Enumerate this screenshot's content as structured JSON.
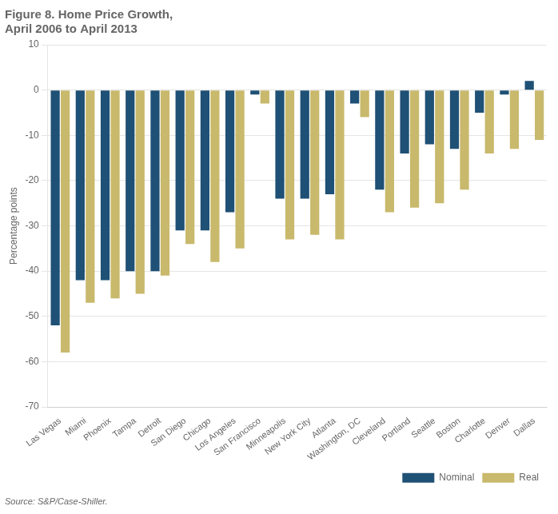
{
  "chart_data": {
    "type": "bar",
    "title": "Figure 8. Home Price Growth,",
    "subtitle": "April 2006 to April 2013",
    "ylabel": "Percentage points",
    "annotations": [
      "Source: S&P/Case-Shiller."
    ],
    "categories": [
      "Las Vegas",
      "Miami",
      "Phoenix",
      "Tampa",
      "Detroit",
      "San Diego",
      "Chicago",
      "Los Angeles",
      "San Francisco",
      "Minneapolis",
      "New York City",
      "Atlanta",
      "Washington, DC",
      "Cleveland",
      "Portland",
      "Seattle",
      "Boston",
      "Charlotte",
      "Denver",
      "Dallas"
    ],
    "series": [
      {
        "name": "Nominal",
        "color": "#1F5075",
        "values": [
          -52,
          -42,
          -42,
          -40,
          -40,
          -31,
          -31,
          -27,
          -1,
          -24,
          -24,
          -23,
          -3,
          -22,
          -14,
          -12,
          -13,
          -5,
          -1,
          2
        ]
      },
      {
        "name": "Real",
        "color": "#C8B96C",
        "values": [
          -58,
          -47,
          -46,
          -45,
          -41,
          -34,
          -38,
          -35,
          -3,
          -33,
          -32,
          -33,
          -6,
          -27,
          -26,
          -25,
          -22,
          -14,
          -13,
          -11
        ]
      }
    ],
    "ylim": [
      -70,
      10
    ],
    "yticks": [
      10,
      0,
      -10,
      -20,
      -30,
      -40,
      -50,
      -60,
      -70
    ],
    "grid": true,
    "legend": "lower right"
  }
}
